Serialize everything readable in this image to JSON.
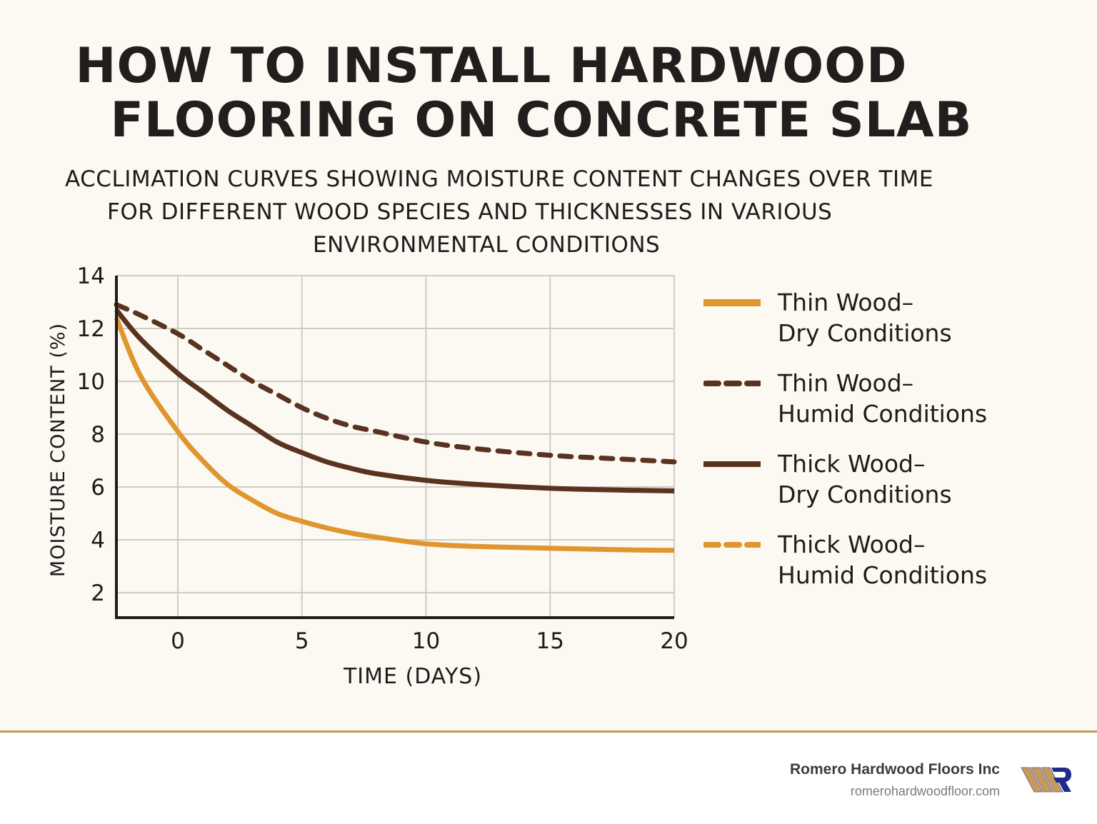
{
  "header": {
    "title_line1": "HOW TO INSTALL HARDWOOD",
    "title_line2": "FLOORING ON CONCRETE SLAB",
    "subtitle_line1": "ACCLIMATION CURVES SHOWING MOISTURE CONTENT CHANGES OVER TIME",
    "subtitle_line2": "FOR DIFFERENT WOOD SPECIES AND THICKNESSES IN VARIOUS",
    "subtitle_line3": "ENVIRONMENTAL CONDITIONS"
  },
  "colors": {
    "background": "#fcf9f3",
    "orange": "#e0962e",
    "brown": "#5a3220",
    "grid": "#cfcbc5",
    "axis": "#1e1c1a",
    "footer_rule": "#c39a5a",
    "logo_wood": "#c89a5a",
    "logo_r": "#1f2a8a"
  },
  "legend": {
    "items": [
      {
        "line1": "Thin Wood–",
        "line2": "Dry Conditions",
        "color": "#e0962e",
        "dash": "solid"
      },
      {
        "line1": "Thin Wood–",
        "line2": "Humid Conditions",
        "color": "#5a3220",
        "dash": "dashed"
      },
      {
        "line1": "Thick Wood–",
        "line2": "Dry Conditions",
        "color": "#5a3220",
        "dash": "solid"
      },
      {
        "line1": "Thick Wood–",
        "line2": "Humid Conditions",
        "color": "#e0962e",
        "dash": "dashed"
      }
    ]
  },
  "chart_data": {
    "type": "line",
    "title": "HOW TO INSTALL HARDWOOD FLOORING ON CONCRETE SLAB",
    "subtitle": "ACCLIMATION CURVES SHOWING MOISTURE CONTENT CHANGES OVER TIME FOR DIFFERENT WOOD SPECIES AND THICKNESSES IN VARIOUS ENVIRONMENTAL CONDITIONS",
    "xlabel": "TIME (DAYS)",
    "ylabel": "MOISTURE CONTENT (%)",
    "xlim": [
      -2.5,
      20
    ],
    "ylim": [
      1,
      14
    ],
    "xticks": [
      0,
      5,
      10,
      15,
      20
    ],
    "yticks": [
      2,
      4,
      6,
      8,
      10,
      12,
      14
    ],
    "grid": true,
    "legend_position": "right",
    "x": [
      -2.5,
      -1.5,
      0,
      1,
      2,
      3,
      4,
      5,
      6,
      7,
      8,
      10,
      12,
      15,
      18,
      20
    ],
    "series": [
      {
        "name": "Thin Wood–Humid Conditions",
        "color": "#5a3220",
        "dash": "dashed",
        "values": [
          12.9,
          12.5,
          11.8,
          11.2,
          10.6,
          10.0,
          9.5,
          9.0,
          8.6,
          8.3,
          8.1,
          7.7,
          7.45,
          7.2,
          7.05,
          6.95
        ]
      },
      {
        "name": "Thick Wood–Dry Conditions",
        "color": "#5a3220",
        "dash": "solid",
        "values": [
          12.7,
          11.6,
          10.3,
          9.6,
          8.9,
          8.3,
          7.7,
          7.3,
          6.95,
          6.7,
          6.5,
          6.25,
          6.1,
          5.95,
          5.88,
          5.85
        ]
      },
      {
        "name": "Thin Wood–Dry Conditions",
        "color": "#e0962e",
        "dash": "solid",
        "values": [
          12.4,
          10.2,
          8.1,
          7.0,
          6.1,
          5.5,
          5.0,
          4.7,
          4.45,
          4.25,
          4.1,
          3.85,
          3.75,
          3.68,
          3.62,
          3.6
        ]
      },
      {
        "name": "Thick Wood–Humid Conditions",
        "color": "#e0962e",
        "dash": "dashed",
        "values": []
      }
    ]
  },
  "footer": {
    "company": "Romero Hardwood Floors Inc",
    "website": "romerohardwoodfloor.com"
  }
}
